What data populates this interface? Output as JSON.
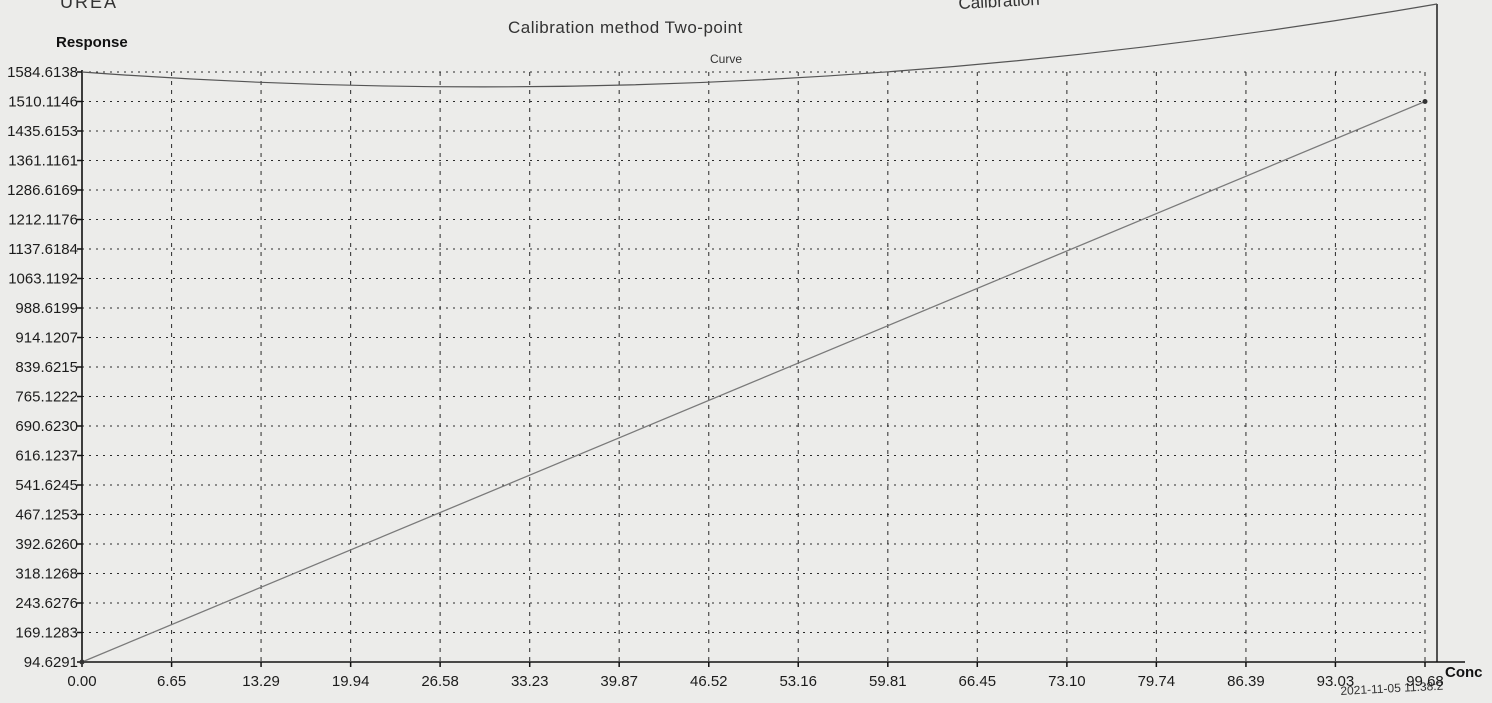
{
  "header": {
    "corner_left": "UREA",
    "corner_right": "Calibration",
    "timestamp": "2021-11-05 11:38:2"
  },
  "chart_data": {
    "type": "line",
    "title": "Calibration method  Two-point",
    "subtitle": "Curve",
    "xlabel": "Conc",
    "ylabel": "Response",
    "x_ticks": [
      "0.00",
      "6.65",
      "13.29",
      "19.94",
      "26.58",
      "33.23",
      "39.87",
      "46.52",
      "53.16",
      "59.81",
      "66.45",
      "73.10",
      "79.74",
      "86.39",
      "93.03",
      "99.68"
    ],
    "y_ticks": [
      "94.6291",
      "169.1283",
      "243.6276",
      "318.1268",
      "392.6260",
      "467.1253",
      "541.6245",
      "616.1237",
      "690.6230",
      "765.1222",
      "839.6215",
      "914.1207",
      "988.6199",
      "1063.1192",
      "1137.6184",
      "1212.1176",
      "1286.6169",
      "1361.1161",
      "1435.6153",
      "1510.1146",
      "1584.6138"
    ],
    "xlim": [
      0,
      99.68
    ],
    "ylim": [
      94.6291,
      1584.6138
    ],
    "grid": true,
    "series": [
      {
        "x": [
          0,
          99.68
        ],
        "y": [
          94.6291,
          1510.1146
        ]
      }
    ],
    "colors": {
      "line": "#7a7a7a",
      "grid": "#2a2a2a",
      "axis": "#111111"
    }
  }
}
